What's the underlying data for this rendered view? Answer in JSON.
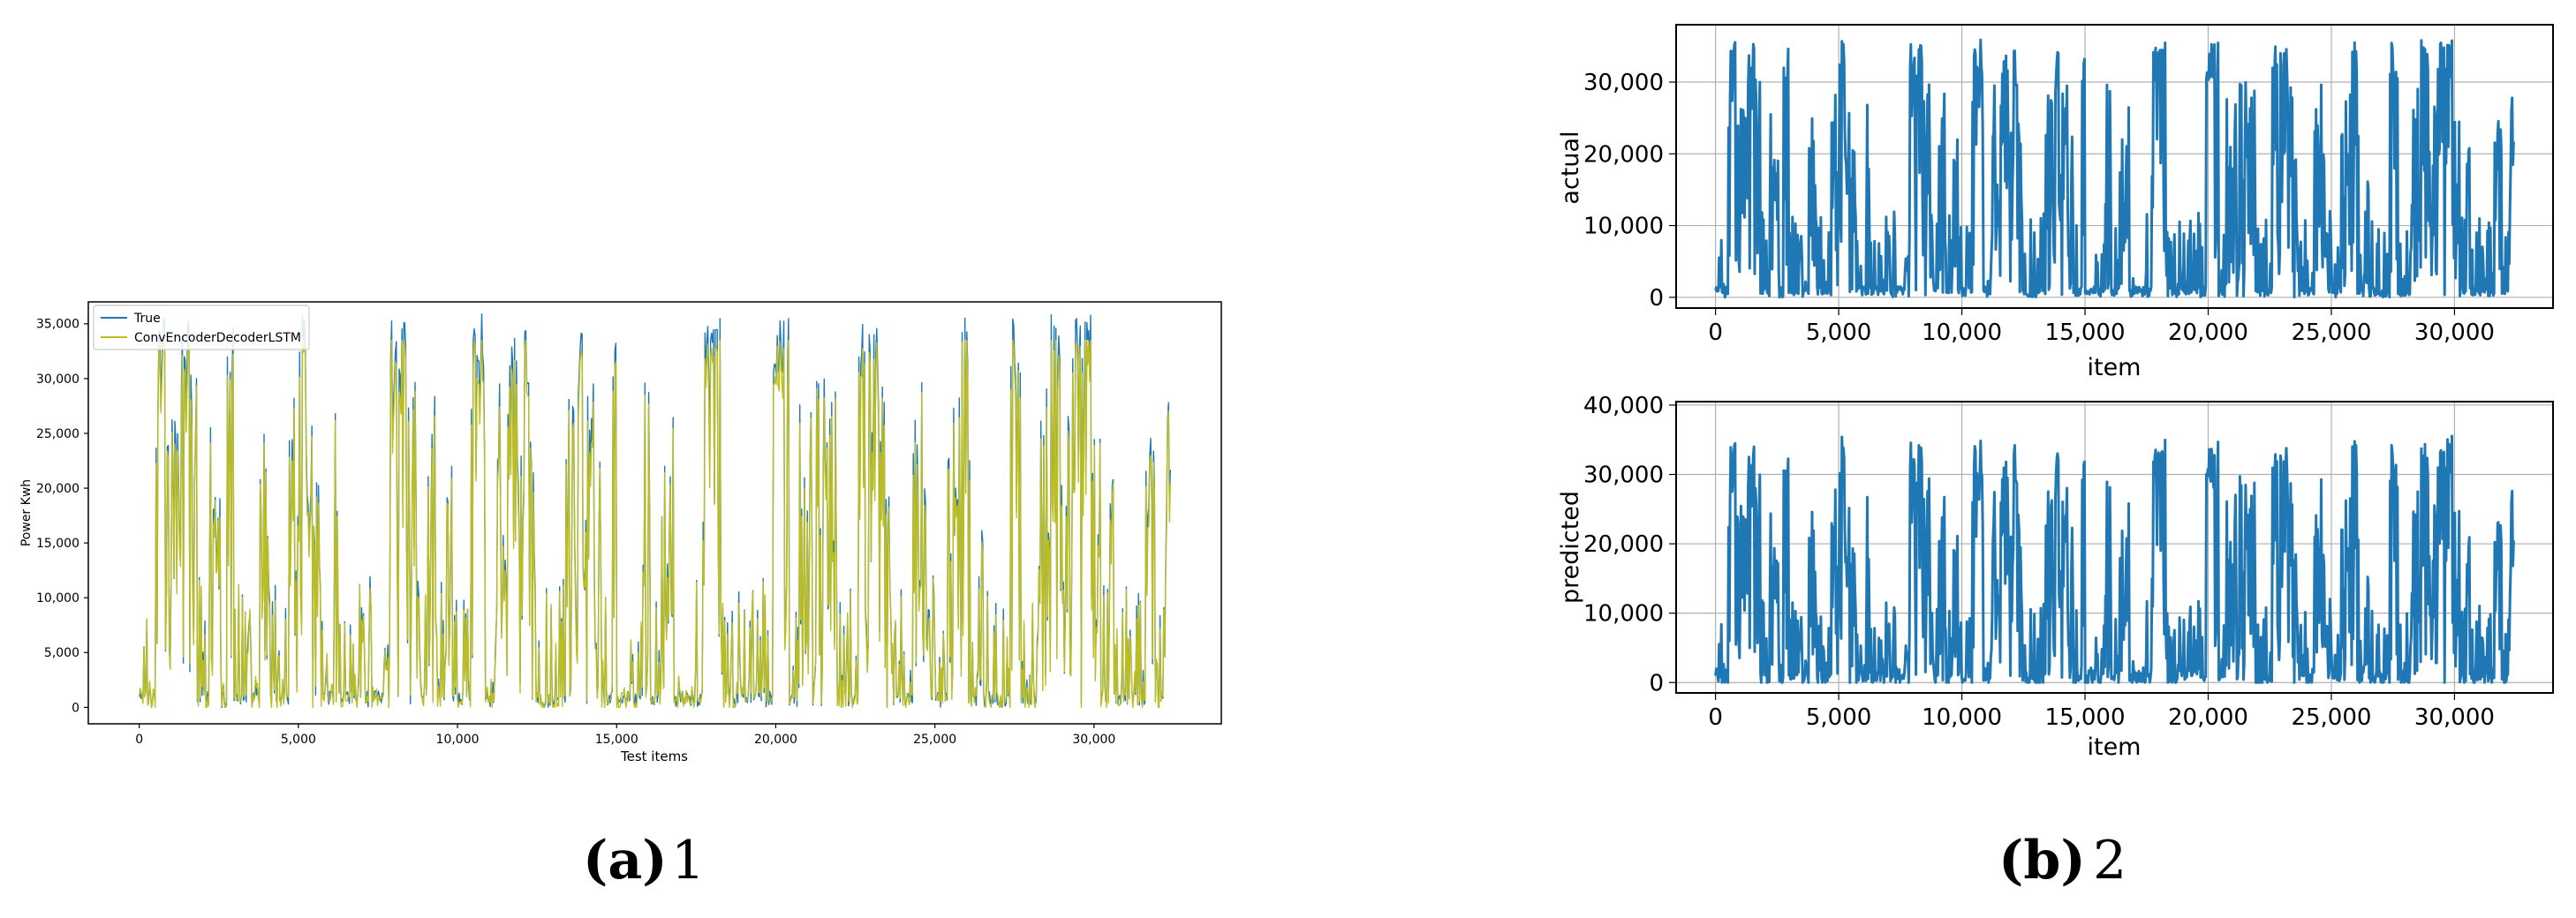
{
  "colors": {
    "true_series": "#1f77b4",
    "pred_series": "#bcbd22",
    "grid": "#b0b0b0",
    "axis": "#000000"
  },
  "captions": [
    {
      "letter": "(a)",
      "text": "1"
    },
    {
      "letter": "(b)",
      "text": "2"
    }
  ],
  "chart_data": [
    {
      "type": "line",
      "xlabel": "Test items",
      "ylabel": "Power Kwh",
      "xlim": [
        -1600,
        34000
      ],
      "ylim": [
        -1500,
        37000
      ],
      "xticks": [
        0,
        5000,
        10000,
        15000,
        20000,
        25000,
        30000
      ],
      "xtick_labels": [
        "0",
        "5,000",
        "10,000",
        "15,000",
        "20,000",
        "25,000",
        "30,000"
      ],
      "yticks": [
        0,
        5000,
        10000,
        15000,
        20000,
        25000,
        30000,
        35000
      ],
      "ytick_labels": [
        "0",
        "5,000",
        "10,000",
        "15,000",
        "20,000",
        "25,000",
        "30,000",
        "35,000"
      ],
      "grid": false,
      "legend": "top-left",
      "series": [
        {
          "name": "True",
          "color": "#1f77b4"
        },
        {
          "name": "ConvEncoderDecoderLSTM",
          "color": "#bcbd22"
        }
      ]
    },
    {
      "type": "line",
      "xlabel": "item",
      "ylabel": "actual",
      "xlim": [
        -1600,
        34000
      ],
      "ylim": [
        -1500,
        38000
      ],
      "xticks": [
        0,
        5000,
        10000,
        15000,
        20000,
        25000,
        30000
      ],
      "xtick_labels": [
        "0",
        "5,000",
        "10,000",
        "15,000",
        "20,000",
        "25,000",
        "30,000"
      ],
      "yticks": [
        0,
        10000,
        20000,
        30000
      ],
      "ytick_labels": [
        "0",
        "10,000",
        "20,000",
        "30,000"
      ],
      "grid": true,
      "series": [
        {
          "color": "#1f77b4"
        }
      ]
    },
    {
      "type": "line",
      "xlabel": "item",
      "ylabel": "predicted",
      "xlim": [
        -1600,
        34000
      ],
      "ylim": [
        -1500,
        40500
      ],
      "xticks": [
        0,
        5000,
        10000,
        15000,
        20000,
        25000,
        30000
      ],
      "xtick_labels": [
        "0",
        "5,000",
        "10,000",
        "15,000",
        "20,000",
        "25,000",
        "30,000"
      ],
      "yticks": [
        0,
        10000,
        20000,
        30000,
        40000
      ],
      "ytick_labels": [
        "0",
        "10,000",
        "20,000",
        "30,000",
        "40,000"
      ],
      "grid": true,
      "series": [
        {
          "color": "#1f77b4"
        }
      ]
    }
  ]
}
